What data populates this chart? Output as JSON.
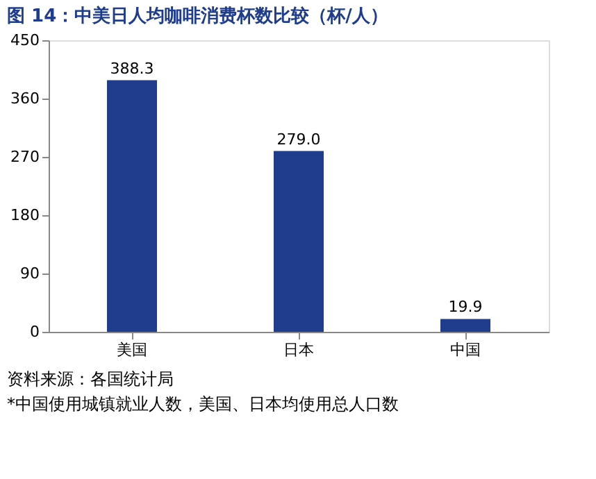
{
  "chart_data": {
    "type": "bar",
    "title": "图 14：中美日人均咖啡消费杯数比较（杯/人）",
    "categories": [
      "美国",
      "日本",
      "中国"
    ],
    "values": [
      388.3,
      279.0,
      19.9
    ],
    "value_labels": [
      "388.3",
      "279.0",
      "19.9"
    ],
    "color": "#1f3d8c",
    "ylim": [
      0,
      450
    ],
    "yticks": [
      0,
      90,
      180,
      270,
      360,
      450
    ],
    "grid": false,
    "annotations": [
      "资料来源：各国统计局",
      "*中国使用城镇就业人数，美国、日本均使用总人口数"
    ]
  }
}
